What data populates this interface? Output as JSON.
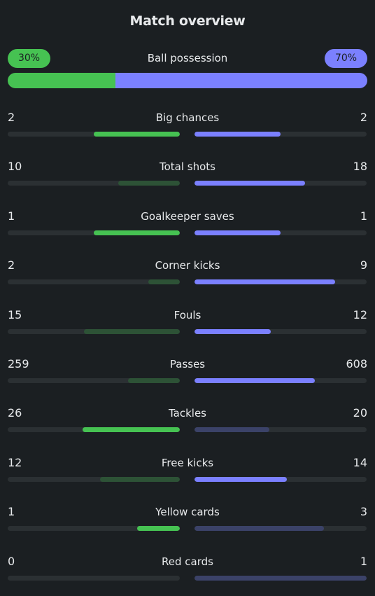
{
  "header": {
    "title": "Match overview"
  },
  "colors": {
    "home_strong": "#46c252",
    "home_weak": "#2d5236",
    "away_strong": "#7b80ff",
    "away_weak": "#3b4268",
    "track": "#2b3033"
  },
  "possession": {
    "label": "Ball possession",
    "home_text": "30%",
    "away_text": "70%",
    "home_fraction": 0.3,
    "away_fraction": 0.7
  },
  "stats": [
    {
      "label": "Big chances",
      "home": "2",
      "away": "2",
      "home_fraction": 0.5,
      "away_fraction": 0.5,
      "home_strong": true,
      "away_strong": true
    },
    {
      "label": "Total shots",
      "home": "10",
      "away": "18",
      "home_fraction": 0.357,
      "away_fraction": 0.643,
      "home_strong": false,
      "away_strong": true
    },
    {
      "label": "Goalkeeper saves",
      "home": "1",
      "away": "1",
      "home_fraction": 0.5,
      "away_fraction": 0.5,
      "home_strong": true,
      "away_strong": true
    },
    {
      "label": "Corner kicks",
      "home": "2",
      "away": "9",
      "home_fraction": 0.182,
      "away_fraction": 0.818,
      "home_strong": false,
      "away_strong": true
    },
    {
      "label": "Fouls",
      "home": "15",
      "away": "12",
      "home_fraction": 0.556,
      "away_fraction": 0.444,
      "home_strong": false,
      "away_strong": true
    },
    {
      "label": "Passes",
      "home": "259",
      "away": "608",
      "home_fraction": 0.299,
      "away_fraction": 0.701,
      "home_strong": false,
      "away_strong": true
    },
    {
      "label": "Tackles",
      "home": "26",
      "away": "20",
      "home_fraction": 0.565,
      "away_fraction": 0.435,
      "home_strong": true,
      "away_strong": false
    },
    {
      "label": "Free kicks",
      "home": "12",
      "away": "14",
      "home_fraction": 0.462,
      "away_fraction": 0.538,
      "home_strong": false,
      "away_strong": true
    },
    {
      "label": "Yellow cards",
      "home": "1",
      "away": "3",
      "home_fraction": 0.25,
      "away_fraction": 0.75,
      "home_strong": true,
      "away_strong": false
    },
    {
      "label": "Red cards",
      "home": "0",
      "away": "1",
      "home_fraction": 0.0,
      "away_fraction": 1.0,
      "home_strong": false,
      "away_strong": false
    }
  ]
}
